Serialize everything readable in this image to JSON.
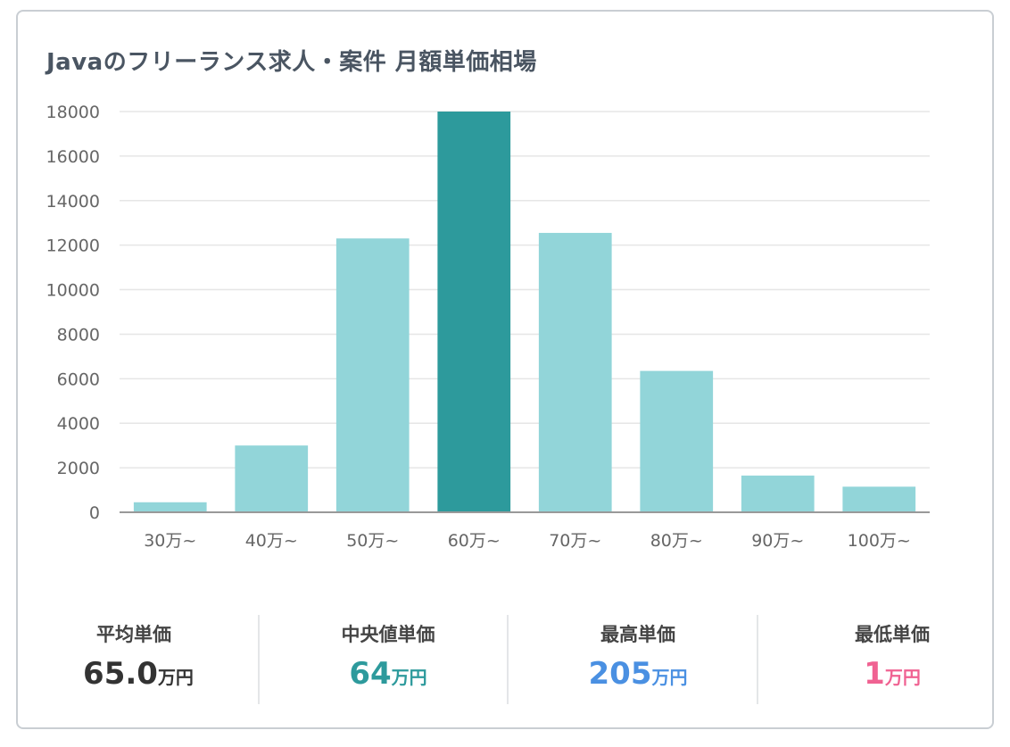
{
  "title": "Javaのフリーランス求人・案件 月額単価相場",
  "chart_data": {
    "type": "bar",
    "categories": [
      "30万~",
      "40万~",
      "50万~",
      "60万~",
      "70万~",
      "80万~",
      "90万~",
      "100万~"
    ],
    "values": [
      450,
      3000,
      12300,
      18000,
      12550,
      6350,
      1650,
      1150
    ],
    "highlight_index": 3,
    "ylim": [
      0,
      18000
    ],
    "yticks": [
      "0",
      "2000",
      "4000",
      "6000",
      "8000",
      "10000",
      "12000",
      "14000",
      "16000",
      "18000"
    ],
    "grid": true,
    "colors": {
      "bar": "#92d5d9",
      "highlight": "#2d9a9c",
      "grid": "#e6e6e6",
      "axis": "#999999"
    }
  },
  "stats": [
    {
      "label": "平均単価",
      "value": "65.0",
      "unit": "万円",
      "color": "#333333"
    },
    {
      "label": "中央値単価",
      "value": "64",
      "unit": "万円",
      "color": "#2d9a9c"
    },
    {
      "label": "最高単価",
      "value": "205",
      "unit": "万円",
      "color": "#4a90e2"
    },
    {
      "label": "最低単価",
      "value": "1",
      "unit": "万円",
      "color": "#f06292"
    }
  ]
}
